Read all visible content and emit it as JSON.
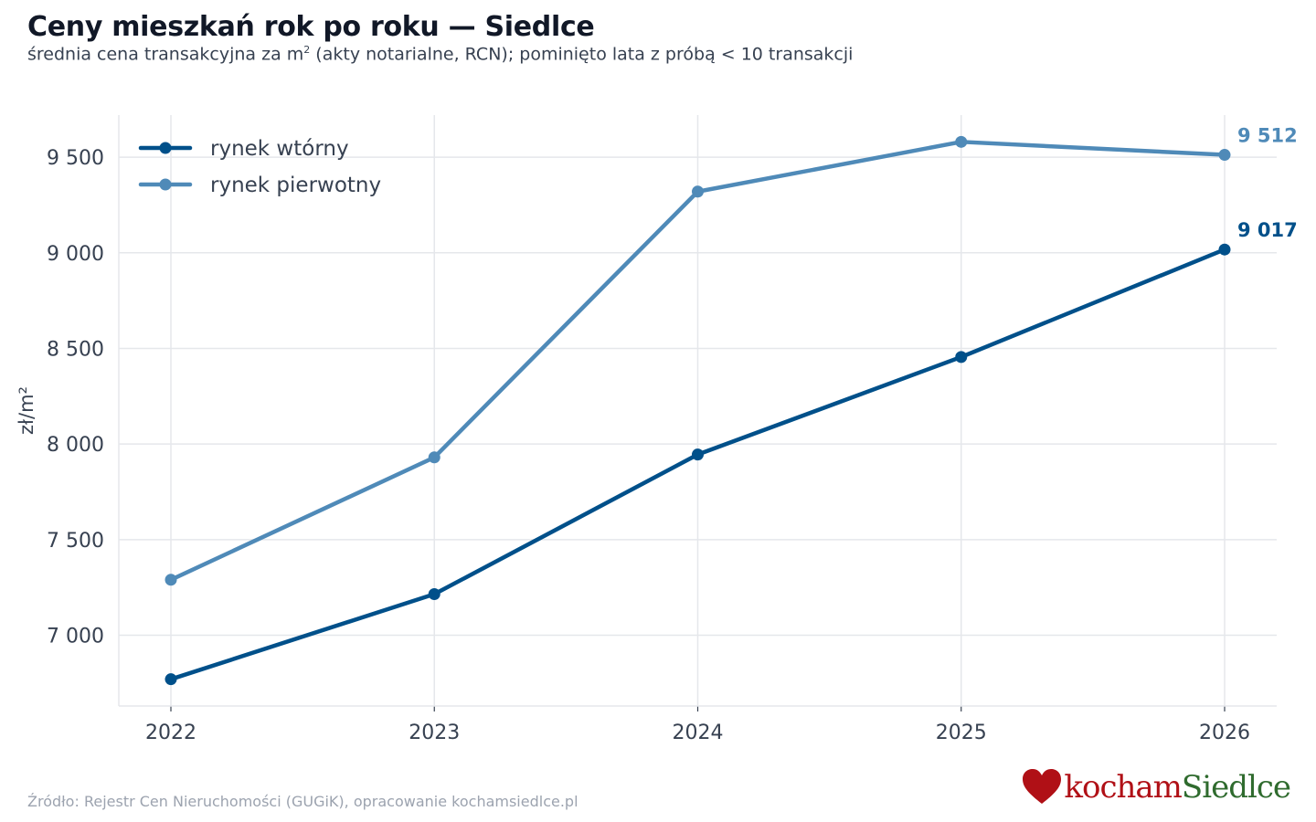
{
  "header": {
    "title": "Ceny mieszkań rok po roku — Siedlce",
    "subtitle_pre": "średnia cena transakcyjna za m",
    "subtitle_sup": "2",
    "subtitle_post": " (akty notarialne, RCN); pominięto lata z próbą < 10 transakcji"
  },
  "footer": {
    "source": "Źródło: Rejestr Cen Nieruchomości (GUGiK), opracowanie kochamsiedlce.pl"
  },
  "logo": {
    "part1": "kocham",
    "part2": "Siedlce",
    "heart_color": "#b01016",
    "part1_color": "#b01016",
    "part2_color": "#2f6b2e"
  },
  "chart_data": {
    "type": "line",
    "title": "",
    "xlabel": "",
    "ylabel": "zł/m²",
    "x": [
      2022,
      2023,
      2024,
      2025,
      2026
    ],
    "x_tick_labels": [
      "2022",
      "2023",
      "2024",
      "2025",
      "2026"
    ],
    "y_ticks": [
      7000,
      7500,
      8000,
      8500,
      9000,
      9500
    ],
    "y_tick_labels": [
      "7 000",
      "7 500",
      "8 000",
      "8 500",
      "9 000",
      "9 500"
    ],
    "ylim": [
      6630,
      9720
    ],
    "grid": true,
    "legend_position": "top-left",
    "series": [
      {
        "name": "rynek wtórny",
        "color": "#00508a",
        "values": [
          6770,
          7215,
          7945,
          8455,
          9017
        ],
        "end_label": "9 017"
      },
      {
        "name": "rynek pierwotny",
        "color": "#4f8ab8",
        "values": [
          7290,
          7930,
          9320,
          9580,
          9512
        ],
        "end_label": "9 512"
      }
    ]
  }
}
